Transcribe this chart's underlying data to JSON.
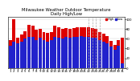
{
  "title": "Milwaukee Weather Outdoor Temperature\nDaily High/Low",
  "title_fontsize": 3.8,
  "background_color": "#ffffff",
  "grid_color": "#cccccc",
  "high_color": "#dd0000",
  "low_color": "#2222cc",
  "legend_high": "High",
  "legend_low": "Low",
  "ylabel_fontsize": 3.5,
  "tick_fontsize": 2.8,
  "ylim": [
    0,
    105
  ],
  "yticks": [
    0,
    20,
    40,
    60,
    80,
    100
  ],
  "ytick_labels": [
    "0",
    "20",
    "40",
    "60",
    "80",
    "100"
  ],
  "days": [
    "1",
    "2",
    "3",
    "4",
    "5",
    "6",
    "7",
    "8",
    "9",
    "10",
    "11",
    "12",
    "13",
    "14",
    "15",
    "16",
    "17",
    "18",
    "19",
    "20",
    "21",
    "22",
    "23",
    "24",
    "25",
    "26",
    "27",
    "28",
    "29",
    "30",
    "31"
  ],
  "highs": [
    58,
    100,
    62,
    68,
    75,
    88,
    87,
    78,
    80,
    74,
    72,
    74,
    87,
    84,
    80,
    82,
    80,
    82,
    83,
    84,
    83,
    83,
    82,
    80,
    74,
    70,
    65,
    55,
    48,
    58,
    62
  ],
  "lows": [
    46,
    54,
    50,
    54,
    60,
    64,
    64,
    58,
    62,
    57,
    54,
    58,
    64,
    62,
    60,
    64,
    62,
    64,
    64,
    66,
    64,
    64,
    62,
    62,
    57,
    54,
    50,
    44,
    38,
    46,
    10
  ],
  "dashed_indices": [
    21,
    22,
    23,
    24
  ],
  "bar_width": 0.85,
  "xlim_left": -0.6,
  "xlim_right": 30.6
}
